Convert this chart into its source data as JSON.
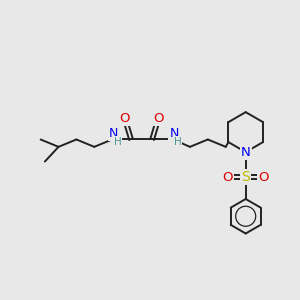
{
  "bg_color": "#e8e8e8",
  "bond_color": "#222222",
  "bond_width": 1.4,
  "N_color": "#0000ee",
  "O_color": "#dd0000",
  "S_color": "#bbbb00",
  "H_color": "#4d9999",
  "figsize": [
    3.0,
    3.0
  ],
  "dpi": 100,
  "xlim": [
    0,
    14
  ],
  "ylim": [
    0,
    11
  ]
}
